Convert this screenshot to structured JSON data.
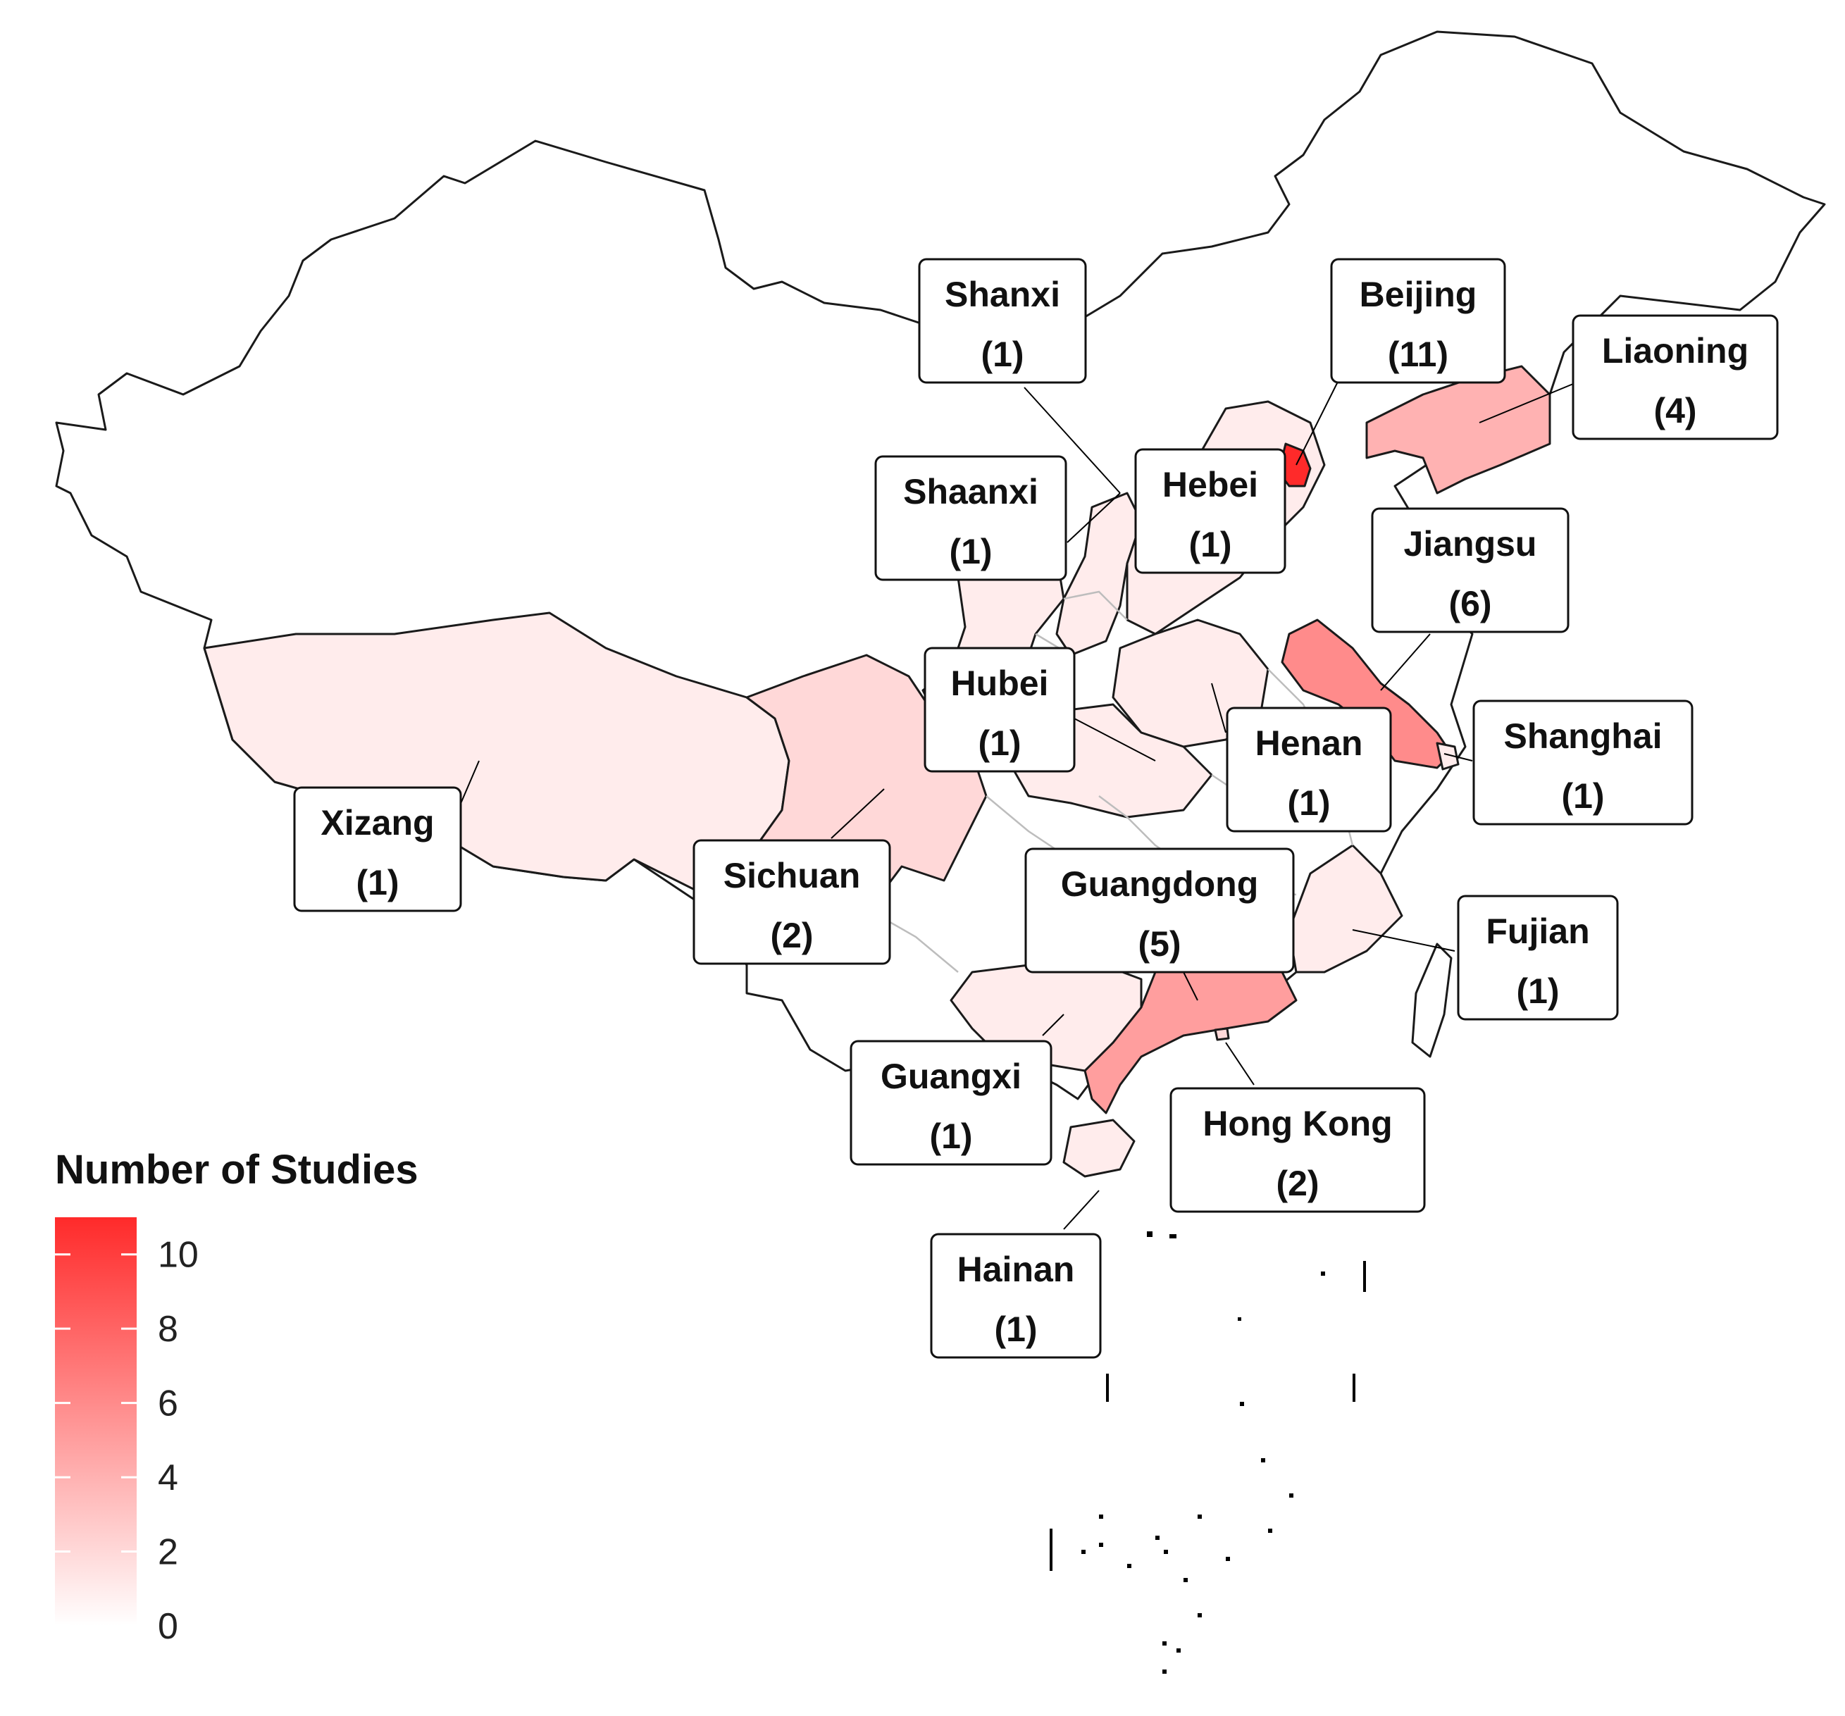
{
  "legend": {
    "title": "Number of Studies",
    "ticks": [
      10,
      8,
      6,
      4,
      2,
      0
    ],
    "range": [
      0,
      11
    ],
    "low_color": "#ffffff",
    "high_color": "#ff2a2a"
  },
  "regions": [
    {
      "id": "beijing",
      "name": "Beijing",
      "count_label": "(11)",
      "value": 11
    },
    {
      "id": "jiangsu",
      "name": "Jiangsu",
      "count_label": "(6)",
      "value": 6
    },
    {
      "id": "guangdong",
      "name": "Guangdong",
      "count_label": "(5)",
      "value": 5
    },
    {
      "id": "liaoning",
      "name": "Liaoning",
      "count_label": "(4)",
      "value": 4
    },
    {
      "id": "sichuan",
      "name": "Sichuan",
      "count_label": "(2)",
      "value": 2
    },
    {
      "id": "hongkong",
      "name": "Hong Kong",
      "count_label": "(2)",
      "value": 2
    },
    {
      "id": "shanxi",
      "name": "Shanxi",
      "count_label": "(1)",
      "value": 1
    },
    {
      "id": "shaanxi",
      "name": "Shaanxi",
      "count_label": "(1)",
      "value": 1
    },
    {
      "id": "hebei",
      "name": "Hebei",
      "count_label": "(1)",
      "value": 1
    },
    {
      "id": "hubei",
      "name": "Hubei",
      "count_label": "(1)",
      "value": 1
    },
    {
      "id": "henan",
      "name": "Henan",
      "count_label": "(1)",
      "value": 1
    },
    {
      "id": "shanghai",
      "name": "Shanghai",
      "count_label": "(1)",
      "value": 1
    },
    {
      "id": "xizang",
      "name": "Xizang",
      "count_label": "(1)",
      "value": 1
    },
    {
      "id": "fujian",
      "name": "Fujian",
      "count_label": "(1)",
      "value": 1
    },
    {
      "id": "guangxi",
      "name": "Guangxi",
      "count_label": "(1)",
      "value": 1
    },
    {
      "id": "hainan",
      "name": "Hainan",
      "count_label": "(1)",
      "value": 1
    }
  ]
}
